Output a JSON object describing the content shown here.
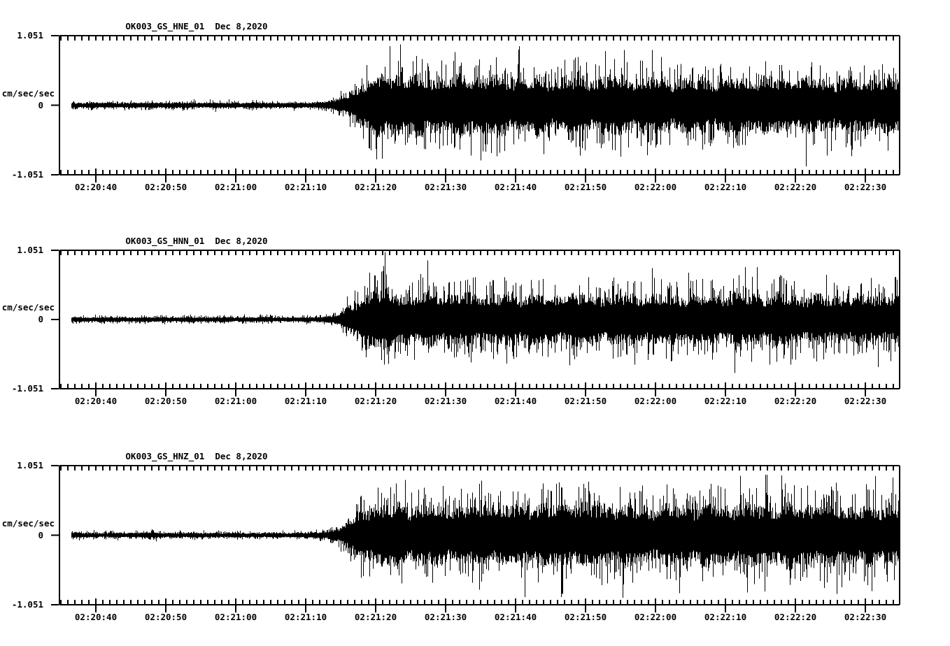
{
  "page": {
    "background": "#ffffff",
    "foreground": "#000000",
    "trace_color": "#000000",
    "axis_color": "#000000"
  },
  "chart_data": [
    {
      "type": "line",
      "subtype": "seismogram-waveform",
      "title": "OK003_GS_HNE_01",
      "date": "Dec 8,2020",
      "title_line": "OK003_GS_HNE_01  Dec 8,2020",
      "ylabel": "cm/sec/sec",
      "y_tick_labels": [
        "1.051",
        "0",
        "-1.051"
      ],
      "ylim": [
        -1.051,
        1.051
      ],
      "x_tick_labels": [
        "02:20:40",
        "02:20:50",
        "02:21:00",
        "02:21:10",
        "02:21:20",
        "02:21:30",
        "02:21:40",
        "02:21:50",
        "02:22:00",
        "02:22:10",
        "02:22:20",
        "02:22:30"
      ],
      "x_major_tick_sec": 10,
      "x_minor_tick_sec": 1,
      "time_window": {
        "start": "02:20:35",
        "end": "02:22:35",
        "duration_sec": 120
      },
      "envelope": {
        "t_sec": [
          0,
          36,
          38,
          40,
          42,
          44,
          47,
          52,
          60,
          70,
          80,
          90,
          100,
          110,
          120
        ],
        "amp_cm_s2": [
          0.045,
          0.045,
          0.06,
          0.1,
          0.22,
          0.42,
          0.48,
          0.44,
          0.46,
          0.42,
          0.44,
          0.41,
          0.43,
          0.4,
          0.42
        ]
      },
      "seed": 101
    },
    {
      "type": "line",
      "subtype": "seismogram-waveform",
      "title": "OK003_GS_HNN_01",
      "date": "Dec 8,2020",
      "title_line": "OK003_GS_HNN_01  Dec 8,2020",
      "ylabel": "cm/sec/sec",
      "y_tick_labels": [
        "1.051",
        "0",
        "-1.051"
      ],
      "ylim": [
        -1.051,
        1.051
      ],
      "x_tick_labels": [
        "02:20:40",
        "02:20:50",
        "02:21:00",
        "02:21:10",
        "02:21:20",
        "02:21:30",
        "02:21:40",
        "02:21:50",
        "02:22:00",
        "02:22:10",
        "02:22:20",
        "02:22:30"
      ],
      "x_major_tick_sec": 10,
      "x_minor_tick_sec": 1,
      "time_window": {
        "start": "02:20:35",
        "end": "02:22:35",
        "duration_sec": 120
      },
      "envelope": {
        "t_sec": [
          0,
          36,
          38,
          40,
          42,
          44,
          46,
          50,
          60,
          70,
          80,
          90,
          100,
          110,
          120
        ],
        "amp_cm_s2": [
          0.04,
          0.04,
          0.055,
          0.09,
          0.24,
          0.44,
          0.48,
          0.4,
          0.38,
          0.4,
          0.38,
          0.38,
          0.4,
          0.36,
          0.38
        ]
      },
      "seed": 202
    },
    {
      "type": "line",
      "subtype": "seismogram-waveform",
      "title": "OK003_GS_HNZ_01",
      "date": "Dec 8,2020",
      "title_line": "OK003_GS_HNZ_01  Dec 8,2020",
      "ylabel": "cm/sec/sec",
      "y_tick_labels": [
        "1.051",
        "0",
        "-1.051"
      ],
      "ylim": [
        -1.051,
        1.051
      ],
      "x_tick_labels": [
        "02:20:40",
        "02:20:50",
        "02:21:00",
        "02:21:10",
        "02:21:20",
        "02:21:30",
        "02:21:40",
        "02:21:50",
        "02:22:00",
        "02:22:10",
        "02:22:20",
        "02:22:30"
      ],
      "x_major_tick_sec": 10,
      "x_minor_tick_sec": 1,
      "time_window": {
        "start": "02:20:35",
        "end": "02:22:35",
        "duration_sec": 120
      },
      "envelope": {
        "t_sec": [
          0,
          36,
          38,
          40,
          42,
          44,
          48,
          55,
          65,
          75,
          85,
          95,
          105,
          115,
          120
        ],
        "amp_cm_s2": [
          0.04,
          0.04,
          0.06,
          0.12,
          0.28,
          0.46,
          0.48,
          0.44,
          0.46,
          0.48,
          0.44,
          0.46,
          0.48,
          0.44,
          0.46
        ]
      },
      "seed": 303
    }
  ]
}
